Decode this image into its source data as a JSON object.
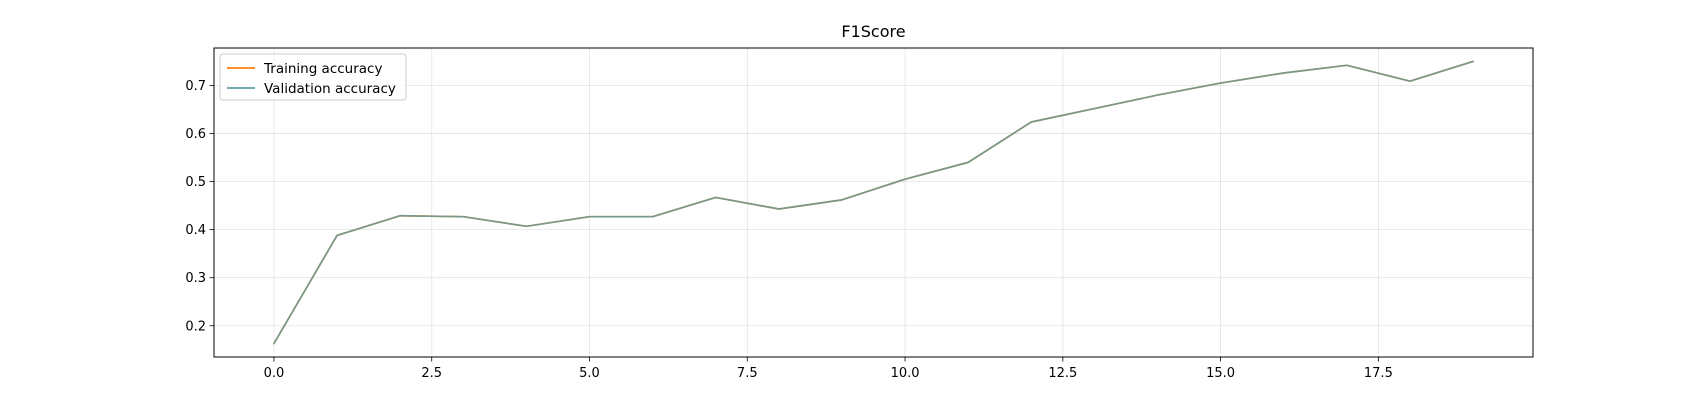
{
  "chart_data": {
    "type": "line",
    "title": "F1Score",
    "xlabel": "",
    "ylabel": "",
    "xlim": [
      -0.95,
      19.95
    ],
    "ylim": [
      0.135,
      0.778
    ],
    "xticks": [
      0.0,
      2.5,
      5.0,
      7.5,
      10.0,
      12.5,
      15.0,
      17.5
    ],
    "xtick_labels": [
      "0.0",
      "2.5",
      "5.0",
      "7.5",
      "10.0",
      "12.5",
      "15.0",
      "17.5"
    ],
    "yticks": [
      0.2,
      0.3,
      0.4,
      0.5,
      0.6,
      0.7
    ],
    "ytick_labels": [
      "0.2",
      "0.3",
      "0.4",
      "0.5",
      "0.6",
      "0.7"
    ],
    "grid": true,
    "legend_position": "top-left",
    "x": [
      0,
      1,
      2,
      3,
      4,
      5,
      6,
      7,
      8,
      9,
      10,
      11,
      12,
      13,
      14,
      15,
      16,
      17,
      18,
      19
    ],
    "series": [
      {
        "name": "Training accuracy",
        "color": "#ff7f0e",
        "values": [
          0.163,
          0.388,
          0.429,
          0.427,
          0.407,
          0.427,
          0.427,
          0.467,
          0.443,
          0.462,
          0.505,
          0.54,
          0.624,
          0.652,
          0.68,
          0.705,
          0.726,
          0.742,
          0.709,
          0.75
        ]
      },
      {
        "name": "Validation accuracy",
        "color": "#5f9ea0",
        "opacity": 0.85,
        "values": [
          0.163,
          0.388,
          0.429,
          0.427,
          0.407,
          0.427,
          0.427,
          0.467,
          0.443,
          0.462,
          0.505,
          0.54,
          0.624,
          0.652,
          0.68,
          0.705,
          0.726,
          0.742,
          0.709,
          0.75
        ]
      }
    ]
  }
}
